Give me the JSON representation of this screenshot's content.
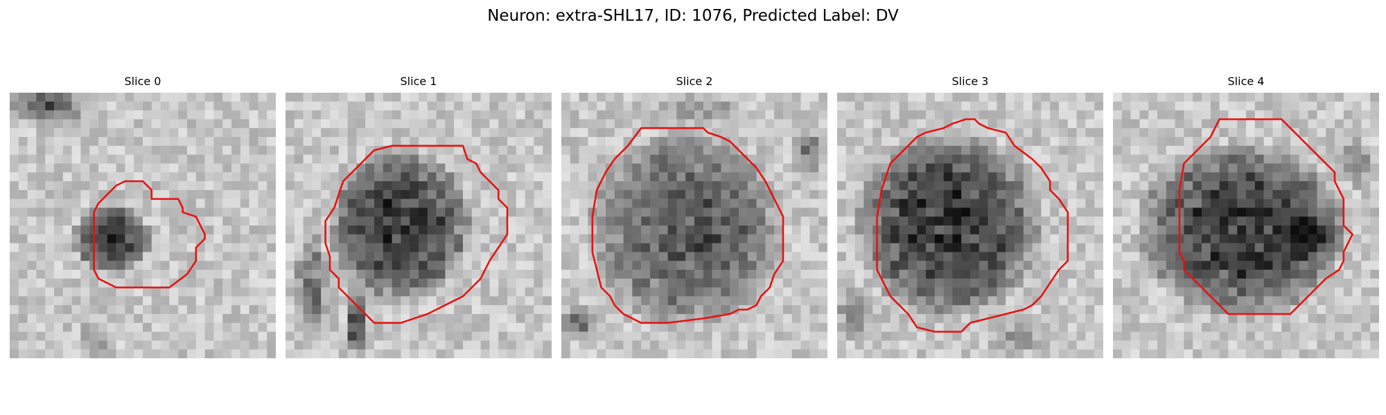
{
  "figure": {
    "title": "Neuron: extra-SHL17, ID: 1076, Predicted Label: DV",
    "contour_color": "#e81010",
    "colormap": "grayscale",
    "panels": [
      {
        "title": "Slice 0"
      },
      {
        "title": "Slice 1"
      },
      {
        "title": "Slice 2"
      },
      {
        "title": "Slice 3"
      },
      {
        "title": "Slice 4"
      }
    ]
  }
}
